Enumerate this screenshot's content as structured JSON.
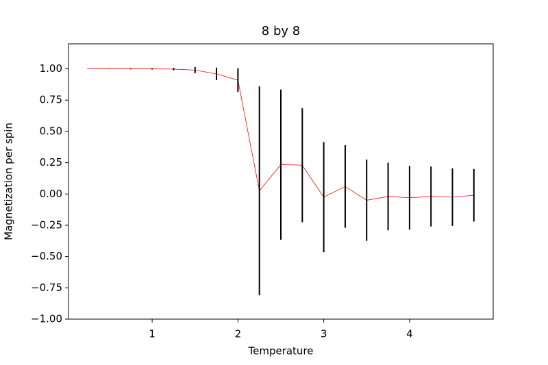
{
  "chart_data": {
    "type": "errorbar",
    "title": "8 by 8",
    "x_label": "Temperature",
    "y_label": "Magnetization per spin",
    "x": [
      0.25,
      0.5,
      0.75,
      1.0,
      1.25,
      1.5,
      1.75,
      2.0,
      2.25,
      2.5,
      2.75,
      3.0,
      3.25,
      3.5,
      3.75,
      4.0,
      4.25,
      4.5,
      4.75
    ],
    "series": [
      {
        "color": "#ff0000",
        "error_color": "#000000",
        "values": [
          1.0,
          1.0,
          1.0,
          1.0,
          0.998,
          0.99,
          0.96,
          0.91,
          0.025,
          0.235,
          0.23,
          -0.025,
          0.06,
          -0.05,
          -0.02,
          -0.03,
          -0.02,
          -0.025,
          -0.01
        ],
        "errors": [
          0,
          0,
          0.004,
          0.005,
          0.01,
          0.025,
          0.05,
          0.095,
          0.835,
          0.6,
          0.455,
          0.44,
          0.33,
          0.325,
          0.27,
          0.255,
          0.24,
          0.23,
          0.21
        ]
      }
    ],
    "xlim": [
      0.025,
      4.975
    ],
    "ylim": [
      -1.0,
      1.2
    ],
    "xticks": [
      1,
      2,
      3,
      4
    ],
    "yticks": [
      {
        "value": 1.0,
        "label": "1.00"
      },
      {
        "value": 0.75,
        "label": "0.75"
      },
      {
        "value": 0.5,
        "label": "0.50"
      },
      {
        "value": 0.25,
        "label": "0.25"
      },
      {
        "value": 0.0,
        "label": "0.00"
      },
      {
        "value": -0.25,
        "label": "−0.25"
      },
      {
        "value": -0.5,
        "label": "−0.50"
      },
      {
        "value": -0.75,
        "label": "−0.75"
      },
      {
        "value": -1.0,
        "label": "−1.00"
      }
    ]
  }
}
